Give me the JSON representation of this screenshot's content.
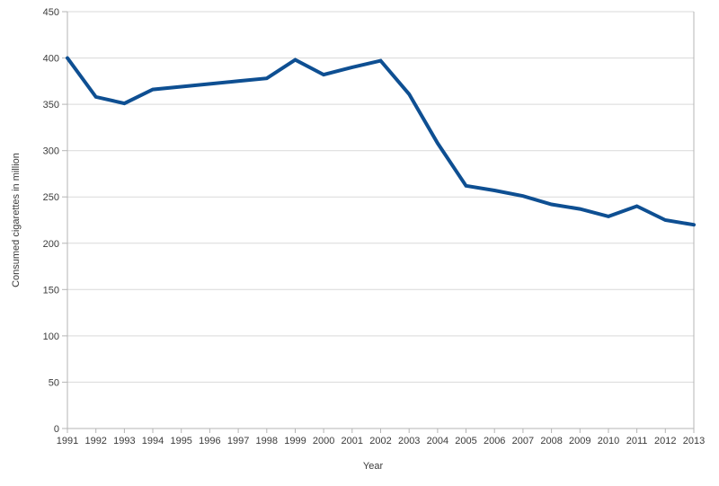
{
  "chart_data": {
    "type": "line",
    "title": "",
    "xlabel": "Year",
    "ylabel": "Consumed cigarettes in million",
    "categories": [
      "1991",
      "1992",
      "1993",
      "1994",
      "1995",
      "1996",
      "1997",
      "1998",
      "1999",
      "2000",
      "2001",
      "2002",
      "2003",
      "2004",
      "2005",
      "2006",
      "2007",
      "2008",
      "2009",
      "2010",
      "2011",
      "2012",
      "2013"
    ],
    "series": [
      {
        "name": "Consumed cigarettes in million",
        "values": [
          400,
          358,
          351,
          366,
          369,
          372,
          375,
          378,
          398,
          382,
          390,
          397,
          361,
          308,
          262,
          257,
          251,
          242,
          237,
          229,
          240,
          225,
          220
        ]
      }
    ],
    "ylim": [
      0,
      450
    ],
    "yticks": [
      0,
      50,
      100,
      150,
      200,
      250,
      300,
      350,
      400,
      450
    ],
    "grid": "horizontal",
    "legend": "none",
    "colors": {
      "line": "#0e4f92",
      "grid": "#d9d9d9",
      "axis": "#b5b5b5",
      "tick_label": "#3b3b3b"
    }
  }
}
